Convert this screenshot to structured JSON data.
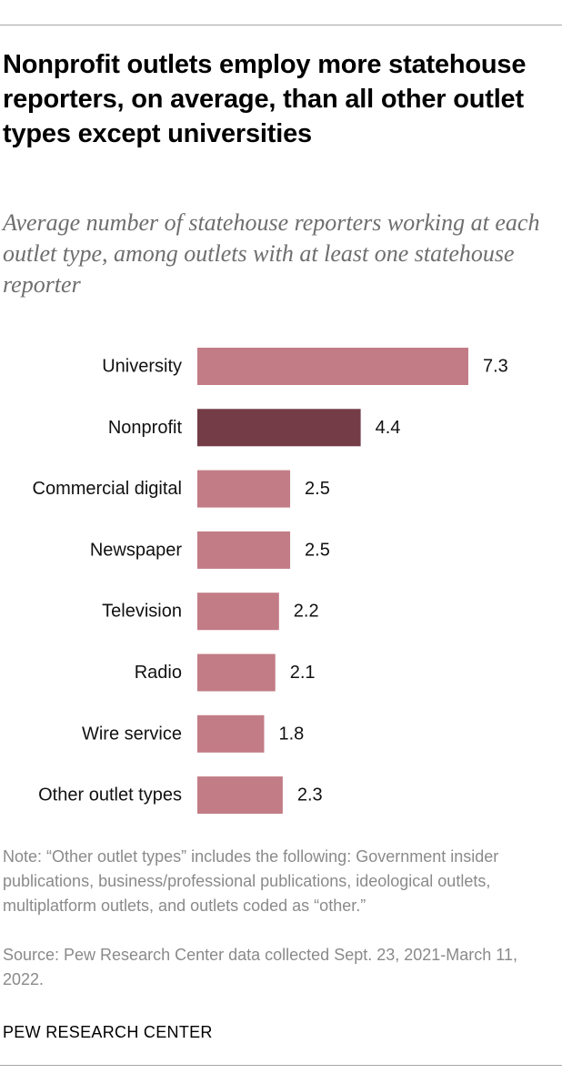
{
  "title": "Nonprofit outlets employ more statehouse reporters, on average, than all other outlet types except universities",
  "subtitle": "Average number of statehouse reporters working at each outlet type, among outlets with at least one statehouse reporter",
  "note": "Note: “Other outlet types” includes the following: Government insider publications, business/professional publications, ideological outlets, multiplatform outlets, and outlets coded as “other.”",
  "source": "Source: Pew Research Center data collected Sept. 23, 2021-March 11, 2022.",
  "brand": "PEW RESEARCH CENTER",
  "colors": {
    "bar": "#c27c86",
    "highlight": "#733c47",
    "rule": "#a6a6a6",
    "note_text": "#8a8a8a",
    "subtitle_text": "#6e6e6e"
  },
  "chart_data": {
    "type": "bar",
    "orientation": "horizontal",
    "categories": [
      "University",
      "Nonprofit",
      "Commercial digital",
      "Newspaper",
      "Television",
      "Radio",
      "Wire service",
      "Other outlet types"
    ],
    "values": [
      7.3,
      4.4,
      2.5,
      2.5,
      2.2,
      2.1,
      1.8,
      2.3
    ],
    "value_labels": [
      "7.3",
      "4.4",
      "2.5",
      "2.5",
      "2.2",
      "2.1",
      "1.8",
      "2.3"
    ],
    "highlight_category": "Nonprofit",
    "xlim": [
      0,
      7.3
    ],
    "grid": false,
    "legend": "none",
    "title": "",
    "xlabel": "",
    "ylabel": ""
  }
}
